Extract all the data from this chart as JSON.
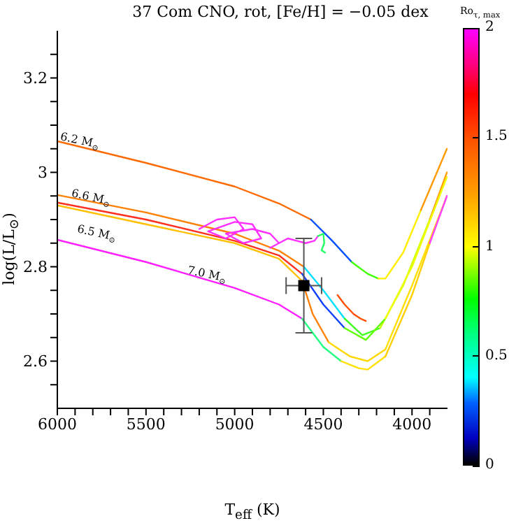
{
  "chart_data": {
    "type": "line",
    "title": "37 Com CNO, rot, [Fe/H] = −0.05 dex",
    "xlabel": "T$_{eff}$ (K)",
    "ylabel": "log(L/L$_{⊙}$)",
    "clabel": "Ro$_{τ, max}$",
    "xlim": [
      6000,
      3800
    ],
    "ylim": [
      2.5,
      3.3
    ],
    "xticks": [
      6000,
      {
        "value": 5900,
        "label": null
      },
      {
        "value": 5800,
        "label": null
      },
      {
        "value": 5700,
        "label": null
      },
      {
        "value": 5600,
        "label": null
      },
      5500,
      {
        "value": 5400,
        "label": null
      },
      {
        "value": 5300,
        "label": null
      },
      {
        "value": 5200,
        "label": null
      },
      {
        "value": 5100,
        "label": null
      },
      5000,
      {
        "value": 4900,
        "label": null
      },
      {
        "value": 4800,
        "label": null
      },
      {
        "value": 4700,
        "label": null
      },
      {
        "value": 4600,
        "label": null
      },
      4500,
      {
        "value": 4400,
        "label": null
      },
      {
        "value": 4300,
        "label": null
      },
      {
        "value": 4200,
        "label": null
      },
      {
        "value": 4100,
        "label": null
      },
      4000,
      {
        "value": 3900,
        "label": null
      }
    ],
    "yticks": [
      {
        "value": 2.55,
        "label": null
      },
      2.6,
      {
        "value": 2.65,
        "label": null
      },
      {
        "value": 2.7,
        "label": null
      },
      {
        "value": 2.75,
        "label": null
      },
      2.8,
      {
        "value": 2.85,
        "label": null
      },
      {
        "value": 2.9,
        "label": null
      },
      {
        "value": 2.95,
        "label": null
      },
      3,
      {
        "value": 3.05,
        "label": null
      },
      {
        "value": 3.1,
        "label": null
      },
      {
        "value": 3.15,
        "label": null
      },
      3.2,
      {
        "value": 3.25,
        "label": null
      }
    ],
    "clim": [
      0,
      2
    ],
    "cticks": [
      0,
      0.5,
      1,
      1.5,
      2
    ],
    "annotations": [
      {
        "text": "6.2 M$_{⊙}$",
        "x": 5874,
        "y": 3.066
      },
      {
        "text": "6.6 M$_{⊙}$",
        "x": 5811,
        "y": 2.946
      },
      "6.5 M$_{⊙}$",
      {
        "text": "7.0 M$_{⊙}$",
        "x": 5157,
        "y": 2.783
      }
    ],
    "series": [
      {
        "color": "#ff6a00",
        "x": [
          6000,
          5500,
          5000,
          4750,
          4570
        ],
        "values": [
          3.066,
          3.02,
          2.97,
          2.934,
          2.9
        ]
      },
      {
        "color": "#0050ff",
        "x": [
          4570,
          4450,
          4340
        ],
        "values": [
          2.9,
          2.855,
          2.81
        ]
      },
      {
        "color": "#40ff00",
        "x": [
          4340,
          4250,
          4190
        ],
        "values": [
          2.81,
          2.785,
          2.775
        ]
      },
      {
        "color": "#ffee00",
        "x": [
          4190,
          4150,
          4050,
          3950
        ],
        "values": [
          2.775,
          2.775,
          2.83,
          2.92
        ]
      },
      {
        "color": "#ff9900",
        "x": [
          3950,
          3803
        ],
        "values": [
          2.92,
          3.05
        ]
      },
      {
        "color": "#ff8000",
        "x": [
          6000,
          5500,
          5000,
          4750,
          4610
        ],
        "values": [
          2.952,
          2.915,
          2.87,
          2.834,
          2.8
        ]
      },
      {
        "color": "#00e0ff",
        "x": [
          4610,
          4500,
          4380
        ],
        "values": [
          2.8,
          2.75,
          2.69
        ]
      },
      {
        "color": "#40ff20",
        "x": [
          4380,
          4280,
          4180
        ],
        "values": [
          2.69,
          2.655,
          2.67
        ]
      },
      {
        "color": "#ccff00",
        "x": [
          4180,
          4050,
          3900
        ],
        "values": [
          2.67,
          2.76,
          2.9
        ]
      },
      {
        "color": "#ffa000",
        "x": [
          3900,
          3803
        ],
        "values": [
          2.9,
          3
        ]
      },
      {
        "color": "#ff3020",
        "x": [
          6000,
          5500,
          5000,
          4750,
          4620
        ],
        "values": [
          2.936,
          2.9,
          2.855,
          2.824,
          2.785
        ]
      },
      {
        "color": "#1040ff",
        "x": [
          4620,
          4500,
          4380
        ],
        "values": [
          2.785,
          2.72,
          2.67
        ]
      },
      {
        "color": "#60ff00",
        "x": [
          4380,
          4260,
          4150
        ],
        "values": [
          2.67,
          2.645,
          2.69
        ]
      },
      {
        "color": "#f0ff00",
        "x": [
          4150,
          4000,
          3803
        ],
        "values": [
          2.69,
          2.8,
          2.99
        ]
      },
      {
        "color": "#ff5000",
        "x": [
          4420,
          4380,
          4330,
          4290,
          4260
        ],
        "values": [
          2.74,
          2.72,
          2.7,
          2.69,
          2.685
        ]
      },
      {
        "color": "#ffc000",
        "x": [
          6000,
          5500,
          5000,
          4750,
          4620
        ],
        "values": [
          2.93,
          2.89,
          2.85,
          2.817,
          2.77
        ]
      },
      {
        "color": "#ff8000",
        "x": [
          4620,
          4560,
          4470
        ],
        "values": [
          2.77,
          2.7,
          2.64
        ]
      },
      {
        "color": "#ffd800",
        "x": [
          4470,
          4350,
          4250,
          4150
        ],
        "values": [
          2.64,
          2.61,
          2.6,
          2.625
        ]
      },
      {
        "color": "#ffe000",
        "x": [
          4150,
          4000,
          3803
        ],
        "values": [
          2.625,
          2.76,
          2.95
        ]
      },
      {
        "color": "#ff20ff",
        "x": [
          6000,
          5500,
          5000,
          4750,
          4620
        ],
        "values": [
          2.857,
          2.81,
          2.755,
          2.72,
          2.69
        ]
      },
      {
        "color": "#20ff80",
        "x": [
          4620,
          4500,
          4400
        ],
        "values": [
          2.69,
          2.63,
          2.6
        ]
      },
      {
        "color": "#ffe000",
        "x": [
          4400,
          4300,
          4250,
          4150
        ],
        "values": [
          2.6,
          2.585,
          2.582,
          2.61
        ]
      },
      {
        "color": "#ffd000",
        "x": [
          4150,
          4000,
          3900
        ],
        "values": [
          2.61,
          2.74,
          2.85
        ]
      },
      {
        "color": "#ff40ff",
        "x": [
          3900,
          3803
        ],
        "values": [
          2.85,
          2.95
        ]
      },
      {
        "color": "#ff30ff",
        "x": [
          5200,
          5100,
          5000,
          4950,
          5050,
          5150,
          5000,
          4900,
          4850,
          4950,
          5050,
          4900,
          4800,
          4750,
          4800,
          4700,
          4650,
          4600,
          4550,
          4530
        ],
        "values": [
          2.88,
          2.9,
          2.905,
          2.88,
          2.86,
          2.875,
          2.895,
          2.89,
          2.86,
          2.85,
          2.87,
          2.88,
          2.87,
          2.85,
          2.84,
          2.86,
          2.855,
          2.85,
          2.855,
          2.865
        ]
      },
      {
        "color": "#20ff60",
        "x": [
          4530,
          4500,
          4495,
          4510,
          4490
        ],
        "values": [
          2.865,
          2.87,
          2.85,
          2.835,
          2.83
        ]
      },
      {
        "type": "scatter",
        "color": "#000000",
        "marker": "square",
        "x": [
          4610
        ],
        "values": [
          2.76
        ],
        "errors": [
          0.1
        ],
        "xerrors": [
          100
        ]
      }
    ]
  }
}
